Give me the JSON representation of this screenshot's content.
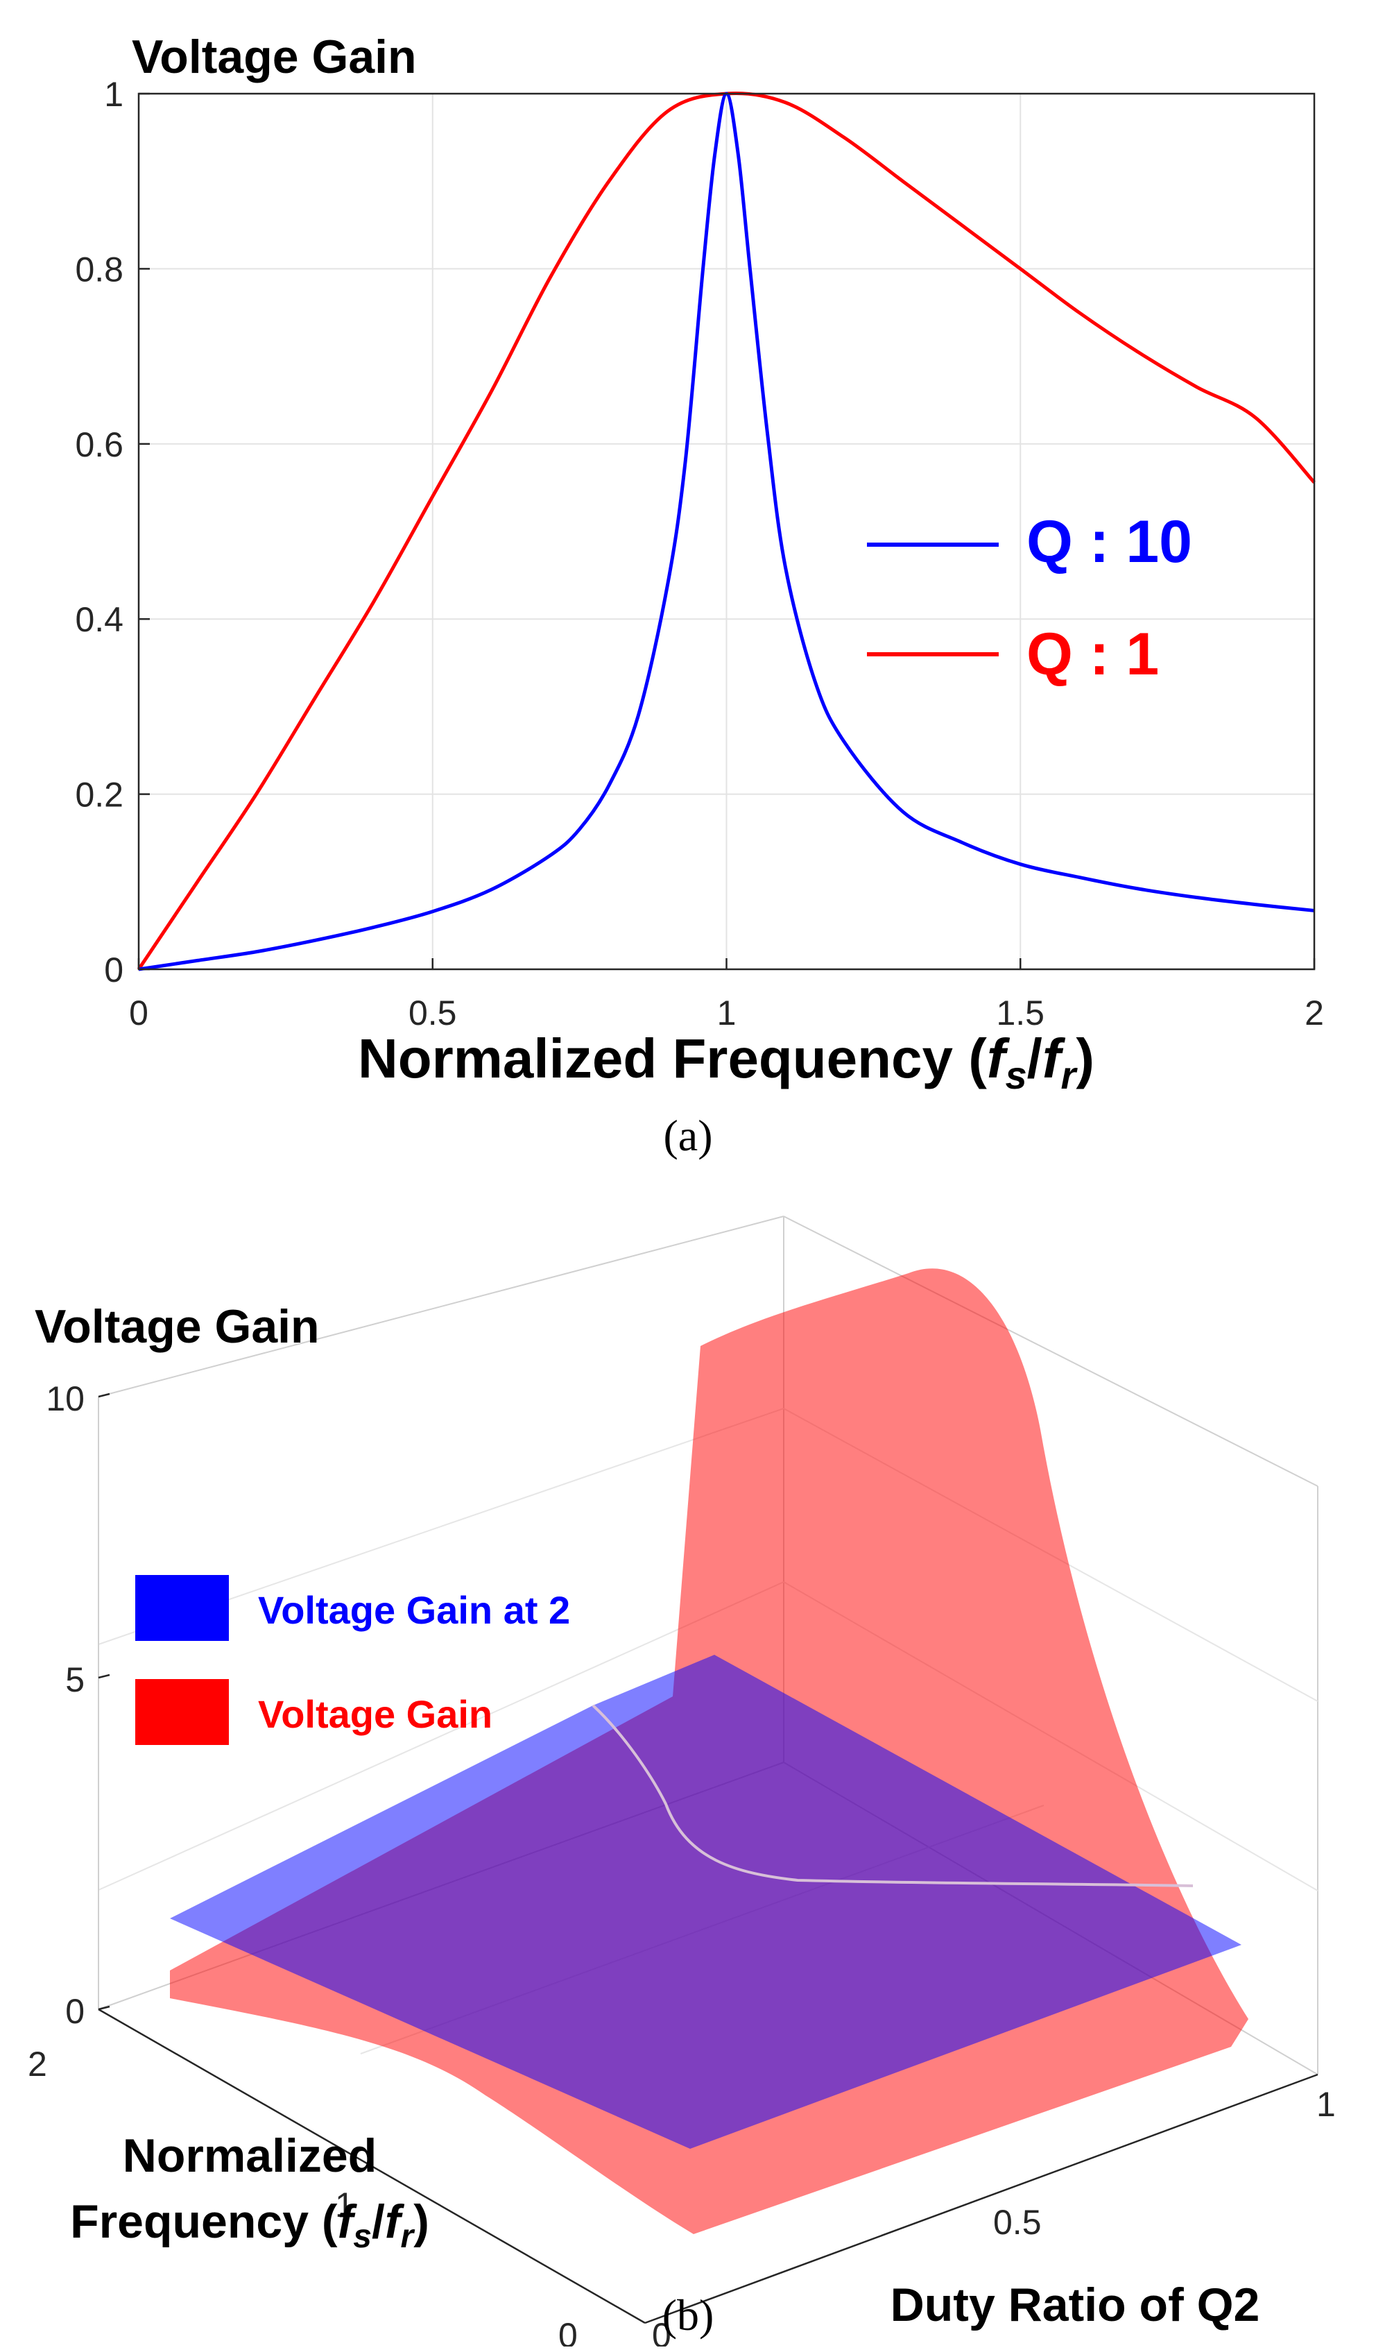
{
  "chart_data": [
    {
      "type": "line",
      "panel_label": "(a)",
      "ylabel": "Voltage Gain",
      "xlabel_main": "Normalized Frequency (",
      "xlabel_f1": "f",
      "xlabel_s": "s",
      "xlabel_slash": "/",
      "xlabel_f2": "f",
      "xlabel_r": "r",
      "xlabel_close": ")",
      "xlim": [
        0,
        2
      ],
      "ylim": [
        0,
        1
      ],
      "xticks": [
        "0",
        "0.5",
        "1",
        "1.5",
        "2"
      ],
      "yticks": [
        "0",
        "0.2",
        "0.4",
        "0.6",
        "0.8",
        "1"
      ],
      "grid": true,
      "legend_position": "right",
      "series": [
        {
          "name": "Q : 10",
          "color": "#0000ff",
          "x": [
            0,
            0.1,
            0.2,
            0.3,
            0.4,
            0.5,
            0.6,
            0.7,
            0.75,
            0.8,
            0.85,
            0.9,
            0.93,
            0.96,
            0.98,
            1.0,
            1.02,
            1.04,
            1.07,
            1.1,
            1.15,
            1.2,
            1.3,
            1.4,
            1.5,
            1.6,
            1.7,
            1.8,
            1.9,
            2.0
          ],
          "y": [
            0,
            0.01,
            0.02,
            0.033,
            0.048,
            0.066,
            0.091,
            0.13,
            0.16,
            0.21,
            0.29,
            0.44,
            0.58,
            0.8,
            0.93,
            1.0,
            0.93,
            0.8,
            0.61,
            0.46,
            0.33,
            0.26,
            0.18,
            0.145,
            0.12,
            0.105,
            0.092,
            0.082,
            0.074,
            0.067
          ]
        },
        {
          "name": "Q : 1",
          "color": "#ff0000",
          "x": [
            0,
            0.1,
            0.2,
            0.3,
            0.4,
            0.5,
            0.6,
            0.7,
            0.8,
            0.9,
            1.0,
            1.1,
            1.2,
            1.3,
            1.4,
            1.5,
            1.6,
            1.7,
            1.8,
            1.9,
            2.0
          ],
          "y": [
            0,
            0.1,
            0.2,
            0.31,
            0.42,
            0.54,
            0.66,
            0.79,
            0.9,
            0.98,
            1.0,
            0.99,
            0.95,
            0.9,
            0.85,
            0.8,
            0.75,
            0.705,
            0.665,
            0.63,
            0.556
          ]
        }
      ]
    },
    {
      "type": "surface3d",
      "panel_label": "(b)",
      "zlabel": "Voltage Gain",
      "zticks": [
        "0",
        "5",
        "10"
      ],
      "freq_ticks": [
        "0",
        "1",
        "2"
      ],
      "duty_ticks": [
        "0",
        "0.5",
        "1"
      ],
      "freq_axis_label_line1": "Normalized",
      "freq_axis_label_line2_pre": "Frequency (",
      "freq_f1": "f",
      "freq_s": "s",
      "freq_slash": "/",
      "freq_f2": "f",
      "freq_r": "r",
      "freq_close": ")",
      "duty_axis_label": "Duty Ratio of Q2",
      "legend_position": "top-left",
      "series": [
        {
          "name": "Voltage Gain at 2",
          "color": "#0000ff",
          "plane_value": 2
        },
        {
          "name": "Voltage Gain",
          "color": "#ff0000"
        }
      ]
    }
  ]
}
